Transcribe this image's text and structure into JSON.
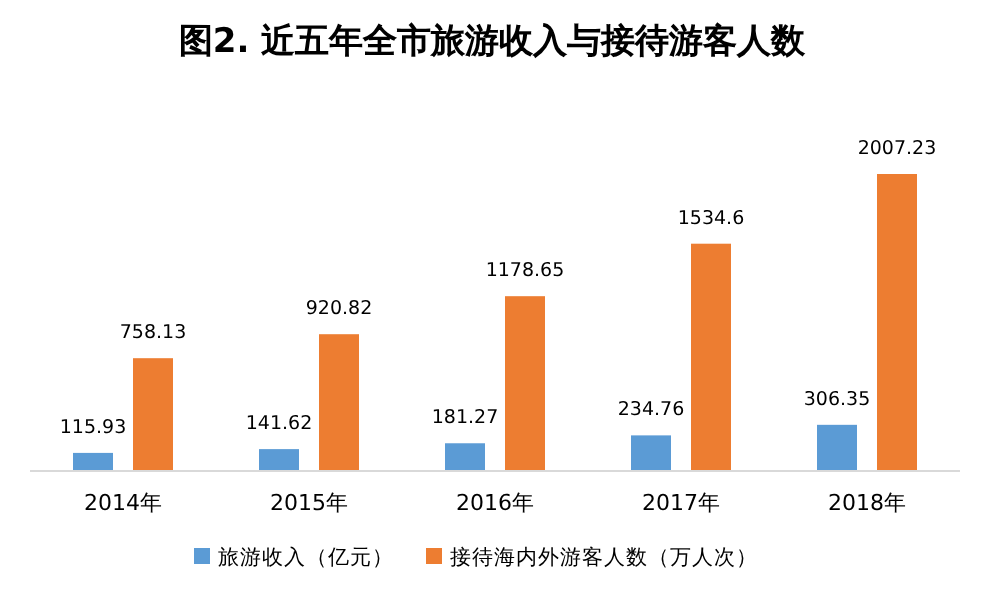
{
  "chart_data": {
    "type": "bar",
    "title": "图2. 近五年全市旅游收入与接待游客人数",
    "categories": [
      "2014年",
      "2015年",
      "2016年",
      "2017年",
      "2018年"
    ],
    "series": [
      {
        "name": "旅游收入（亿元）",
        "color": "#5b9bd5",
        "values": [
          115.93,
          141.62,
          181.27,
          234.76,
          306.35
        ]
      },
      {
        "name": "接待海内外游客人数（万人次）",
        "color": "#ed7d31",
        "values": [
          758.13,
          920.82,
          1178.65,
          1534.6,
          2007.23
        ]
      }
    ],
    "data_labels": true,
    "legend": "bottom"
  }
}
